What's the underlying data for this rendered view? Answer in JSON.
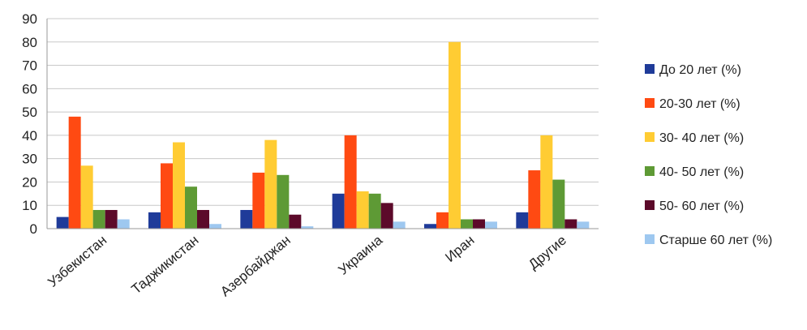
{
  "chart_data": {
    "type": "bar",
    "categories": [
      "Узбекистан",
      "Таджикистан",
      "Азербайджан",
      "Украина",
      "Иран",
      "Другие"
    ],
    "series": [
      {
        "name": "До 20 лет (%)",
        "color": "#1f3b99",
        "values": [
          5,
          7,
          8,
          15,
          2,
          7
        ]
      },
      {
        "name": "20-30 лет (%)",
        "color": "#ff4a12",
        "values": [
          48,
          28,
          24,
          40,
          7,
          25
        ]
      },
      {
        "name": "30- 40 лет (%)",
        "color": "#ffcc33",
        "values": [
          27,
          37,
          38,
          16,
          80,
          40
        ]
      },
      {
        "name": "40- 50 лет (%)",
        "color": "#5e9a35",
        "values": [
          8,
          18,
          23,
          15,
          4,
          21
        ]
      },
      {
        "name": "50- 60 лет (%)",
        "color": "#5c0a2a",
        "values": [
          8,
          8,
          6,
          11,
          4,
          4
        ]
      },
      {
        "name": "Старше 60 лет (%)",
        "color": "#9ec8f0",
        "values": [
          4,
          2,
          1,
          3,
          3,
          3
        ]
      }
    ],
    "ylim": [
      0,
      90
    ],
    "yticks": [
      0,
      10,
      20,
      30,
      40,
      50,
      60,
      70,
      80,
      90
    ],
    "grid": true,
    "legend_position": "right"
  }
}
